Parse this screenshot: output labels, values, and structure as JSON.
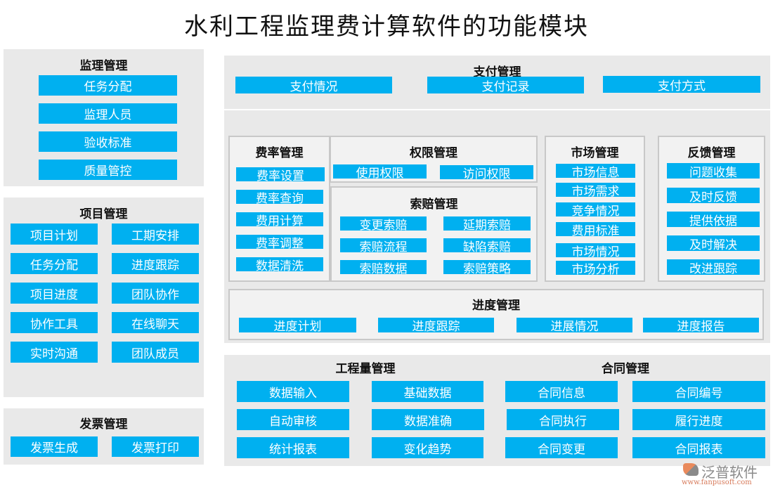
{
  "title": "水利工程监理费计算软件的功能模块",
  "colors": {
    "button": "#00b0f0",
    "panel": "#e9e9e9",
    "box": "#f2f2f2"
  },
  "supervision": {
    "title": "监理管理",
    "items": [
      "任务分配",
      "监理人员",
      "验收标准",
      "质量管控"
    ]
  },
  "project": {
    "title": "项目管理",
    "items": [
      "项目计划",
      "工期安排",
      "任务分配",
      "进度跟踪",
      "项目进度",
      "团队协作",
      "协作工具",
      "在线聊天",
      "实时沟通",
      "团队成员"
    ]
  },
  "invoice": {
    "title": "发票管理",
    "items": [
      "发票生成",
      "发票打印"
    ]
  },
  "payment": {
    "title": "支付管理",
    "items": [
      "支付情况",
      "支付记录",
      "支付方式"
    ]
  },
  "rate": {
    "title": "费率管理",
    "items": [
      "费率设置",
      "费率查询",
      "费用计算",
      "费率调整",
      "数据清洗"
    ]
  },
  "permission": {
    "title": "权限管理",
    "items": [
      "使用权限",
      "访问权限"
    ]
  },
  "claim": {
    "title": "索赔管理",
    "items": [
      "变更索赔",
      "延期索赔",
      "索赔流程",
      "缺陷索赔",
      "索赔数据",
      "索赔策略"
    ]
  },
  "market": {
    "title": "市场管理",
    "items": [
      "市场信息",
      "市场需求",
      "竞争情况",
      "费用标准",
      "市场情况",
      "市场分析"
    ]
  },
  "feedback": {
    "title": "反馈管理",
    "items": [
      "问题收集",
      "及时反馈",
      "提供依据",
      "及时解决",
      "改进跟踪"
    ]
  },
  "progress": {
    "title": "进度管理",
    "items": [
      "进度计划",
      "进度跟踪",
      "进展情况",
      "进度报告"
    ]
  },
  "quantity": {
    "title": "工程量管理",
    "items": [
      "数据输入",
      "基础数据",
      "自动审核",
      "数据准确",
      "统计报表",
      "变化趋势"
    ]
  },
  "contract": {
    "title": "合同管理",
    "items": [
      "合同信息",
      "合同编号",
      "合同执行",
      "履行进度",
      "合同变更",
      "合同报表"
    ]
  },
  "logo": {
    "name": "泛普软件",
    "url": "www.fanpusoft.com"
  }
}
